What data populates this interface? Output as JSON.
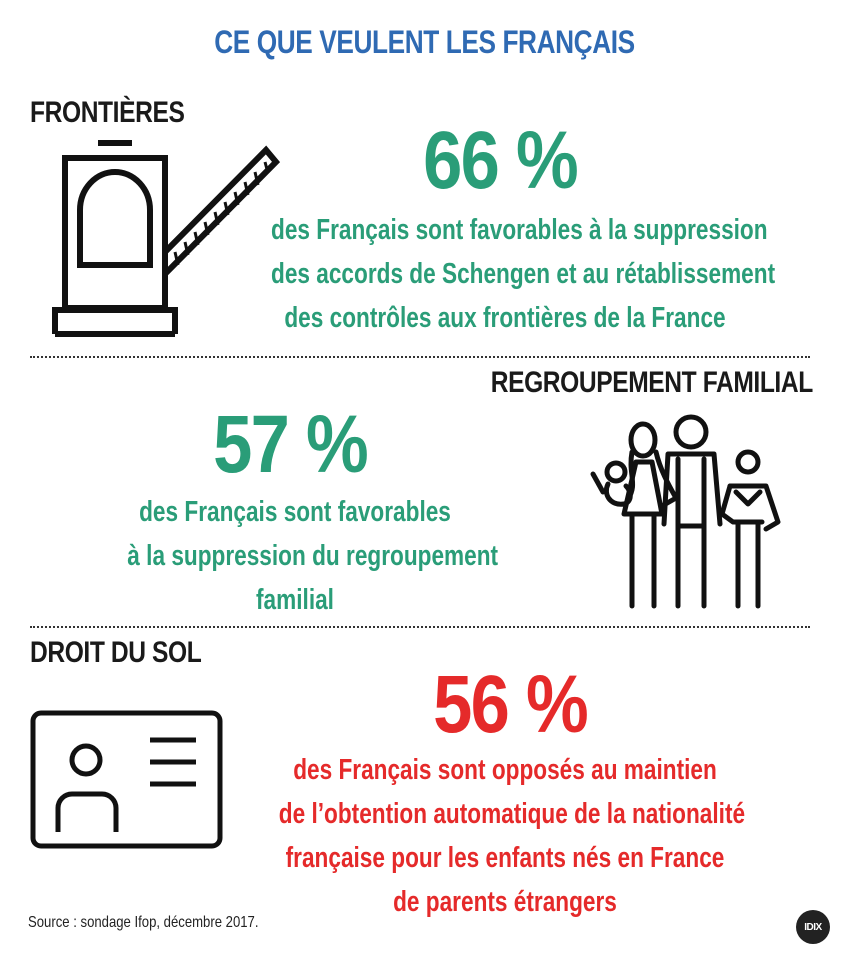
{
  "title": "CE QUE VEULENT LES FRANÇAIS",
  "sections": {
    "frontieres": {
      "heading": "FRONTIÈRES",
      "percent": "66 %",
      "lines": [
        "des Français sont  favorables à la suppression",
        "des accords de Schengen et au rétablissement",
        "des contrôles aux frontières de la France"
      ],
      "icon": "border-barrier-icon"
    },
    "regroupement": {
      "heading": "REGROUPEMENT FAMILIAL",
      "percent": "57 %",
      "lines": [
        "des Français sont  favorables",
        "à la suppression du regroupement",
        "familial"
      ],
      "icon": "family-icon"
    },
    "droit_du_sol": {
      "heading": "DROIT DU SOL",
      "percent": "56 %",
      "lines": [
        "des Français sont opposés au maintien",
        "de l’obtention automatique de la nationalité",
        "française pour les enfants nés en France",
        "de parents étrangers"
      ],
      "icon": "id-card-icon"
    }
  },
  "source": "Source : sondage Ifop, décembre 2017.",
  "logo": "IDIX",
  "colors": {
    "title": "#2f6ab3",
    "green": "#2a9d78",
    "red": "#e52a2a",
    "text": "#1a1a1a"
  }
}
